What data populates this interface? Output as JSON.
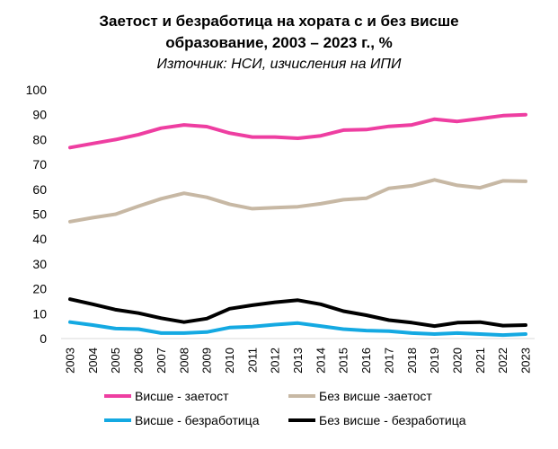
{
  "chart_data": {
    "type": "line",
    "title_line1": "Заетост и безработица на хората с и без висше",
    "title_line2": "образование, 2003 – 2023 г., %",
    "subtitle": "Източник: НСИ, изчисления на ИПИ",
    "xlabel": "",
    "ylabel": "",
    "ylim": [
      0,
      100
    ],
    "yticks": [
      0,
      10,
      20,
      30,
      40,
      50,
      60,
      70,
      80,
      90,
      100
    ],
    "grid": false,
    "legend_position": "bottom",
    "x": [
      "2003",
      "2004",
      "2005",
      "2006",
      "2007",
      "2008",
      "2009",
      "2010",
      "2011",
      "2012",
      "2013",
      "2014",
      "2015",
      "2016",
      "2017",
      "2018",
      "2019",
      "2020",
      "2021",
      "2022",
      "2023"
    ],
    "series": [
      {
        "name": "Висше - заетост",
        "color": "#ee3ea1",
        "values": [
          76.8,
          78.4,
          80.0,
          82.0,
          84.6,
          85.9,
          85.2,
          82.6,
          81.0,
          81.0,
          80.5,
          81.5,
          83.8,
          84.0,
          85.3,
          85.9,
          88.2,
          87.3,
          88.4,
          89.6,
          90.0
        ]
      },
      {
        "name": "Без висше -заетост",
        "color": "#c7b8a4",
        "values": [
          47.0,
          48.6,
          50.0,
          53.2,
          56.2,
          58.4,
          56.8,
          54.0,
          52.2,
          52.6,
          53.0,
          54.2,
          55.8,
          56.4,
          60.4,
          61.4,
          63.8,
          61.6,
          60.6,
          63.4,
          63.2
        ]
      },
      {
        "name": "Висше - безработица",
        "color": "#14a9e2",
        "values": [
          6.6,
          5.4,
          4.0,
          3.8,
          2.2,
          2.2,
          2.6,
          4.4,
          4.8,
          5.6,
          6.2,
          5.0,
          3.8,
          3.2,
          3.0,
          2.2,
          1.8,
          2.2,
          1.8,
          1.4,
          1.8
        ]
      },
      {
        "name": "Без висше - безработица",
        "color": "#000000",
        "values": [
          15.8,
          13.8,
          11.6,
          10.2,
          8.2,
          6.6,
          8.0,
          12.0,
          13.4,
          14.6,
          15.4,
          13.8,
          11.0,
          9.4,
          7.4,
          6.4,
          5.0,
          6.4,
          6.6,
          5.2,
          5.4
        ]
      }
    ]
  }
}
